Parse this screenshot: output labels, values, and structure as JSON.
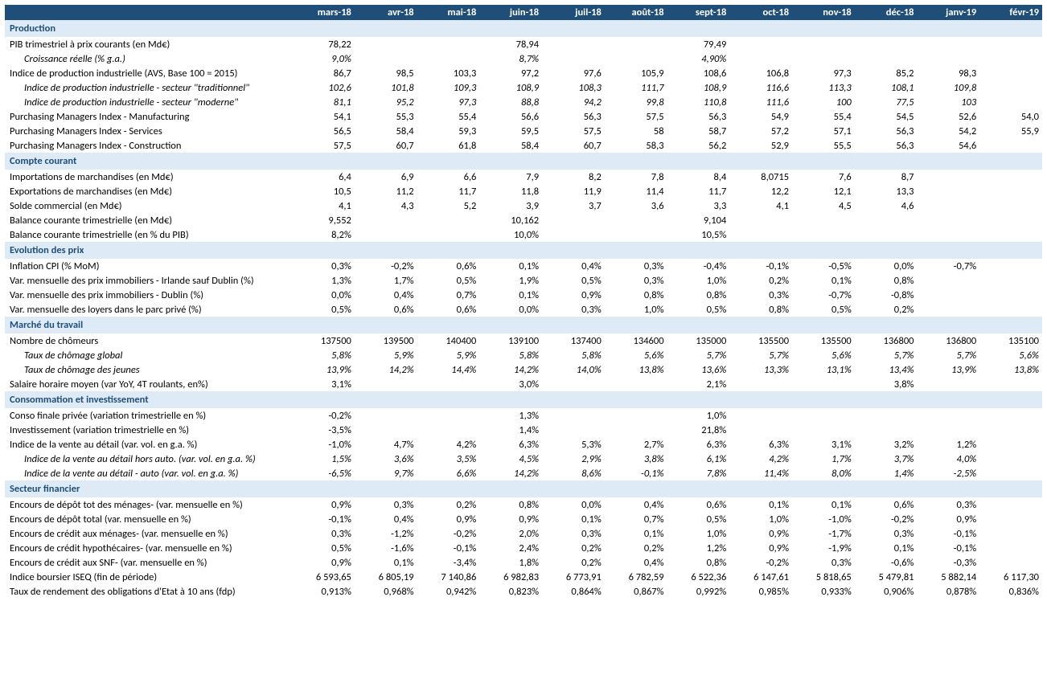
{
  "colors": {
    "header_bg": "#1f4e79",
    "header_fg": "#ffffff",
    "section_bg": "#deebf7",
    "section_fg": "#1f4e79"
  },
  "fonts": {
    "family": "Calibri, Arial, sans-serif",
    "size_pt": 9.5
  },
  "months": [
    "mars-18",
    "avr-18",
    "mai-18",
    "juin-18",
    "juil-18",
    "août-18",
    "sept-18",
    "oct-18",
    "nov-18",
    "déc-18",
    "janv-19",
    "févr-19"
  ],
  "sections": [
    {
      "title": "Production",
      "rows": [
        {
          "label": "PIB trimestriel  à prix courants (en Md€)",
          "values": [
            "78,22",
            "",
            "",
            "78,94",
            "",
            "",
            "79,49",
            "",
            "",
            "",
            "",
            ""
          ]
        },
        {
          "label": "Croissance réelle (% g.a.)",
          "indent": true,
          "italic": true,
          "values": [
            "9,0%",
            "",
            "",
            "8,7%",
            "",
            "",
            "4,90%",
            "",
            "",
            "",
            "",
            ""
          ]
        },
        {
          "label": "Indice de production industrielle (AVS, Base 100 = 2015)",
          "values": [
            "86,7",
            "98,5",
            "103,3",
            "97,2",
            "97,6",
            "105,9",
            "108,6",
            "106,8",
            "97,3",
            "85,2",
            "98,3",
            ""
          ]
        },
        {
          "label": "Indice de production industrielle - secteur \"traditionnel\"",
          "indent": true,
          "italic": true,
          "values": [
            "102,6",
            "101,8",
            "109,3",
            "108,9",
            "108,3",
            "111,7",
            "108,9",
            "116,6",
            "113,3",
            "108,1",
            "109,8",
            ""
          ]
        },
        {
          "label": "Indice de production industrielle - secteur \"moderne\"",
          "indent": true,
          "italic": true,
          "values": [
            "81,1",
            "95,2",
            "97,3",
            "88,8",
            "94,2",
            "99,8",
            "110,8",
            "111,6",
            "100",
            "77,5",
            "103",
            ""
          ]
        },
        {
          "label": "Purchasing Managers Index - Manufacturing",
          "values": [
            "54,1",
            "55,3",
            "55,4",
            "56,6",
            "56,3",
            "57,5",
            "56,3",
            "54,9",
            "55,4",
            "54,5",
            "52,6",
            "54,0"
          ]
        },
        {
          "label": "Purchasing Managers Index - Services",
          "values": [
            "56,5",
            "58,4",
            "59,3",
            "59,5",
            "57,5",
            "58",
            "58,7",
            "57,2",
            "57,1",
            "56,3",
            "54,2",
            "55,9"
          ]
        },
        {
          "label": "Purchasing Managers Index - Construction",
          "values": [
            "57,5",
            "60,7",
            "61,8",
            "58,4",
            "60,7",
            "58,3",
            "56,2",
            "52,9",
            "55,5",
            "56,3",
            "54,6",
            ""
          ]
        }
      ]
    },
    {
      "title": "Compte courant",
      "rows": [
        {
          "label": "Importations de marchandises (en Md€)",
          "values": [
            "6,4",
            "6,9",
            "6,6",
            "7,9",
            "8,2",
            "7,8",
            "8,4",
            "8,0715",
            "7,6",
            "8,7",
            "",
            ""
          ]
        },
        {
          "label": "Exportations de marchandises (en Md€)",
          "values": [
            "10,5",
            "11,2",
            "11,7",
            "11,8",
            "11,9",
            "11,4",
            "11,7",
            "12,2",
            "12,1",
            "13,3",
            "",
            ""
          ]
        },
        {
          "label": "Solde commercial (en Md€)",
          "values": [
            "4,1",
            "4,3",
            "5,2",
            "3,9",
            "3,7",
            "3,6",
            "3,3",
            "4,1",
            "4,5",
            "4,6",
            "",
            ""
          ]
        },
        {
          "label": "Balance courante trimestrielle (en Md€)",
          "values": [
            "9,552",
            "",
            "",
            "10,162",
            "",
            "",
            "9,104",
            "",
            "",
            "",
            "",
            ""
          ]
        },
        {
          "label": "Balance courante trimestrielle (en % du PIB)",
          "values": [
            "8,2%",
            "",
            "",
            "10,0%",
            "",
            "",
            "10,5%",
            "",
            "",
            "",
            "",
            ""
          ]
        }
      ]
    },
    {
      "title": "Evolution des prix",
      "rows": [
        {
          "label": "Inflation CPI (% MoM)",
          "values": [
            "0,3%",
            "-0,2%",
            "0,6%",
            "0,1%",
            "0,4%",
            "0,3%",
            "-0,4%",
            "-0,1%",
            "-0,5%",
            "0,0%",
            "-0,7%",
            ""
          ]
        },
        {
          "label": "Var. mensuelle des prix immobiliers - Irlande sauf Dublin (%)",
          "values": [
            "1,3%",
            "1,7%",
            "0,5%",
            "1,9%",
            "0,5%",
            "0,3%",
            "1,0%",
            "0,2%",
            "0,1%",
            "0,8%",
            "",
            ""
          ]
        },
        {
          "label": "Var. mensuelle des prix immobiliers - Dublin  (%)",
          "values": [
            "0,0%",
            "0,4%",
            "0,7%",
            "0,1%",
            "0,9%",
            "0,8%",
            "0,8%",
            "0,3%",
            "-0,7%",
            "-0,8%",
            "",
            ""
          ]
        },
        {
          "label": "Var. mensuelle des loyers dans le parc privé (%)",
          "values": [
            "0,5%",
            "0,6%",
            "0,6%",
            "0,0%",
            "0,3%",
            "1,0%",
            "0,5%",
            "0,8%",
            "0,5%",
            "0,2%",
            "",
            ""
          ]
        }
      ]
    },
    {
      "title": "Marché du travail",
      "rows": [
        {
          "label": "Nombre de chômeurs",
          "values": [
            "137500",
            "139500",
            "140400",
            "139100",
            "137400",
            "134600",
            "135000",
            "135500",
            "135500",
            "136800",
            "136800",
            "135100"
          ]
        },
        {
          "label": "Taux de chômage global",
          "indent": true,
          "italic": true,
          "values": [
            "5,8%",
            "5,9%",
            "5,9%",
            "5,8%",
            "5,8%",
            "5,6%",
            "5,7%",
            "5,7%",
            "5,6%",
            "5,7%",
            "5,7%",
            "5,6%"
          ]
        },
        {
          "label": "Taux de chômage des jeunes",
          "indent": true,
          "italic": true,
          "values": [
            "13,9%",
            "14,2%",
            "14,4%",
            "14,2%",
            "14,0%",
            "13,8%",
            "13,6%",
            "13,3%",
            "13,1%",
            "13,4%",
            "13,9%",
            "13,8%"
          ]
        },
        {
          "label": "Salaire horaire moyen (var YoY, 4T roulants, en%)",
          "values": [
            "3,1%",
            "",
            "",
            "3,0%",
            "",
            "",
            "2,1%",
            "",
            "",
            "3,8%",
            "",
            ""
          ]
        }
      ]
    },
    {
      "title": "Consommation et investissement",
      "rows": [
        {
          "label": "Conso finale privée (variation trimestrielle en %)",
          "values": [
            "-0,2%",
            "",
            "",
            "1,3%",
            "",
            "",
            "1,0%",
            "",
            "",
            "",
            "",
            ""
          ]
        },
        {
          "label": "Investissement (variation trimestrielle en %)",
          "values": [
            "-3,5%",
            "",
            "",
            "1,4%",
            "",
            "",
            "21,8%",
            "",
            "",
            "",
            "",
            ""
          ]
        },
        {
          "label": "Indice de la vente au détail (var. vol. en g.a. %)",
          "values": [
            "-1,0%",
            "4,7%",
            "4,2%",
            "6,3%",
            "5,3%",
            "2,7%",
            "6,3%",
            "6,3%",
            "3,1%",
            "3,2%",
            "1,2%",
            ""
          ]
        },
        {
          "label": "Indice de la vente au détail hors auto. (var. vol. en g.a. %)",
          "indent": true,
          "italic": true,
          "values": [
            "1,5%",
            "3,6%",
            "3,5%",
            "4,5%",
            "2,9%",
            "3,8%",
            "6,1%",
            "4,2%",
            "1,7%",
            "3,7%",
            "4,0%",
            ""
          ]
        },
        {
          "label": "Indice de la vente au détail - auto (var. vol. en g.a. %)",
          "indent": true,
          "italic": true,
          "values": [
            "-6,5%",
            "9,7%",
            "6,6%",
            "14,2%",
            "8,6%",
            "-0,1%",
            "7,8%",
            "11,4%",
            "8,0%",
            "1,4%",
            "-2,5%",
            ""
          ]
        }
      ]
    },
    {
      "title": "Secteur financier",
      "rows": [
        {
          "label": "Encours de dépôt tot des ménages- (var. mensuelle en %)",
          "values": [
            "0,9%",
            "0,3%",
            "0,2%",
            "0,8%",
            "0,0%",
            "0,4%",
            "0,6%",
            "0,1%",
            "0,1%",
            "0,6%",
            "0,3%",
            ""
          ]
        },
        {
          "label": "Encours de dépôt total (var. mensuelle en %)",
          "values": [
            "-0,1%",
            "0,4%",
            "0,9%",
            "0,9%",
            "0,1%",
            "0,7%",
            "0,5%",
            "1,0%",
            "-1,0%",
            "-0,2%",
            "0,9%",
            ""
          ]
        },
        {
          "label": "Encours de crédit aux ménages- (var. mensuelle en %)",
          "values": [
            "0,3%",
            "-1,2%",
            "-0,2%",
            "2,0%",
            "0,3%",
            "0,1%",
            "1,0%",
            "0,9%",
            "-1,7%",
            "0,3%",
            "-0,1%",
            ""
          ]
        },
        {
          "label": "Encours de crédit hypothécaires- (var. mensuelle en %)",
          "values": [
            "0,5%",
            "-1,6%",
            "-0,1%",
            "2,4%",
            "0,2%",
            "0,2%",
            "1,2%",
            "0,9%",
            "-1,9%",
            "0,1%",
            "-0,1%",
            ""
          ]
        },
        {
          "label": "Encours de crédit aux SNF- (var. mensuelle en %)",
          "values": [
            "0,9%",
            "0,1%",
            "-3,4%",
            "1,8%",
            "0,2%",
            "0,4%",
            "0,8%",
            "-0,2%",
            "0,3%",
            "-0,6%",
            "-0,3%",
            ""
          ]
        },
        {
          "label": "Indice boursier ISEQ (fin de période)",
          "values": [
            "6 593,65",
            "6 805,19",
            "7 140,86",
            "6 982,83",
            "6 773,91",
            "6 782,59",
            "6 522,36",
            "6 147,61",
            "5 818,65",
            "5 479,81",
            "5 882,14",
            "6 117,30"
          ]
        },
        {
          "label": "Taux de rendement des obligations d'Etat à 10 ans (fdp)",
          "values": [
            "0,913%",
            "0,968%",
            "0,942%",
            "0,823%",
            "0,864%",
            "0,867%",
            "0,992%",
            "0,985%",
            "0,933%",
            "0,906%",
            "0,878%",
            "0,836%"
          ]
        }
      ]
    }
  ]
}
